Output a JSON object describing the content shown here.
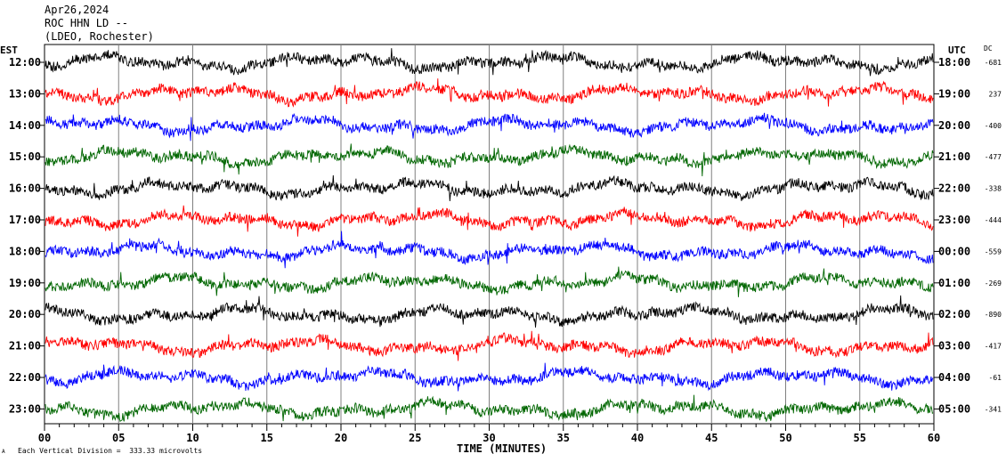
{
  "header": {
    "date": "Apr26,2024",
    "station": "ROC HHN LD --",
    "location": "(LDEO, Rochester)"
  },
  "left_axis_label": "EST",
  "right_axis_label": "UTC",
  "dc_label": "DC",
  "footer": {
    "mark": "A",
    "scale_note": "Each Vertical Division =  333.33 microvolts"
  },
  "colors": {
    "cycle": [
      "#000000",
      "#ff0000",
      "#0000ff",
      "#006600"
    ],
    "gridline": "#808080",
    "axis": "#000000",
    "background": "#ffffff"
  },
  "chart_data": {
    "type": "line",
    "subtype": "helicorder",
    "xlabel": "TIME (MINUTES)",
    "xlim": [
      0,
      60
    ],
    "x_ticks": [
      0,
      5,
      10,
      15,
      20,
      25,
      30,
      35,
      40,
      45,
      50,
      55,
      60
    ],
    "x_tick_labels": [
      "00",
      "05",
      "10",
      "15",
      "20",
      "25",
      "30",
      "35",
      "40",
      "45",
      "50",
      "55",
      "60"
    ],
    "grid": true,
    "rows": [
      {
        "est": "12:00",
        "utc": "18:00",
        "dc": "-681",
        "color": "#000000"
      },
      {
        "est": "13:00",
        "utc": "19:00",
        "dc": "237",
        "color": "#ff0000"
      },
      {
        "est": "14:00",
        "utc": "20:00",
        "dc": "-400",
        "color": "#0000ff"
      },
      {
        "est": "15:00",
        "utc": "21:00",
        "dc": "-477",
        "color": "#006600"
      },
      {
        "est": "16:00",
        "utc": "22:00",
        "dc": "-338",
        "color": "#000000"
      },
      {
        "est": "17:00",
        "utc": "23:00",
        "dc": "-444",
        "color": "#ff0000"
      },
      {
        "est": "18:00",
        "utc": "00:00",
        "dc": "-559",
        "color": "#0000ff"
      },
      {
        "est": "19:00",
        "utc": "01:00",
        "dc": "-269",
        "color": "#006600"
      },
      {
        "est": "20:00",
        "utc": "02:00",
        "dc": "-890",
        "color": "#000000"
      },
      {
        "est": "21:00",
        "utc": "03:00",
        "dc": "-417",
        "color": "#ff0000"
      },
      {
        "est": "22:00",
        "utc": "04:00",
        "dc": "-61",
        "color": "#0000ff"
      },
      {
        "est": "23:00",
        "utc": "05:00",
        "dc": "-341",
        "color": "#006600"
      }
    ]
  }
}
